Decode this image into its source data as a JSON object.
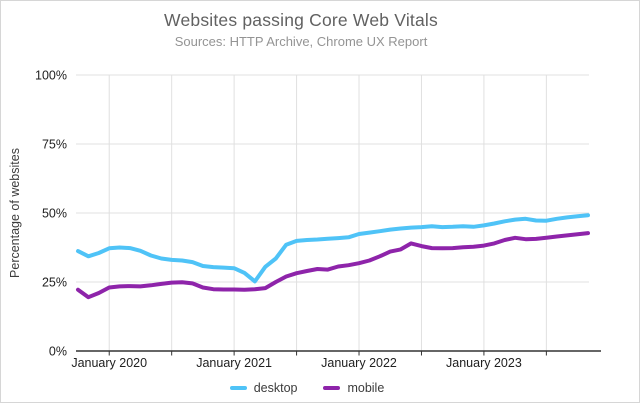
{
  "page": {
    "background": "#ffffff",
    "border_color": "#d6d6d6"
  },
  "chart_data": {
    "type": "line",
    "title": "Websites passing Core Web Vitals",
    "subtitle": "Sources: HTTP Archive, Chrome UX Report",
    "xlabel": "",
    "ylabel": "Percentage of websites",
    "ylim": [
      0,
      100
    ],
    "grid": true,
    "legend_position": "bottom",
    "y_ticks": [
      {
        "value": 0,
        "label": "0%"
      },
      {
        "value": 25,
        "label": "25%"
      },
      {
        "value": 50,
        "label": "50%"
      },
      {
        "value": 75,
        "label": "75%"
      },
      {
        "value": 100,
        "label": "100%"
      }
    ],
    "x": [
      "2019-10",
      "2019-11",
      "2019-12",
      "2020-01",
      "2020-02",
      "2020-03",
      "2020-04",
      "2020-05",
      "2020-06",
      "2020-07",
      "2020-08",
      "2020-09",
      "2020-10",
      "2020-11",
      "2020-12",
      "2021-01",
      "2021-02",
      "2021-03",
      "2021-04",
      "2021-05",
      "2021-06",
      "2021-07",
      "2021-08",
      "2021-09",
      "2021-10",
      "2021-11",
      "2021-12",
      "2022-01",
      "2022-02",
      "2022-03",
      "2022-04",
      "2022-05",
      "2022-06",
      "2022-07",
      "2022-08",
      "2022-09",
      "2022-10",
      "2022-11",
      "2022-12",
      "2023-01",
      "2023-02",
      "2023-03",
      "2023-04",
      "2023-05",
      "2023-06",
      "2023-07",
      "2023-08",
      "2023-09",
      "2023-10",
      "2023-11"
    ],
    "x_gridline_indices": [
      3,
      9,
      15,
      21,
      27,
      33,
      39,
      45
    ],
    "x_label_ticks": [
      {
        "index": 3,
        "label": "January 2020"
      },
      {
        "index": 15,
        "label": "January 2021"
      },
      {
        "index": 27,
        "label": "January 2022"
      },
      {
        "index": 39,
        "label": "January 2023"
      }
    ],
    "series": [
      {
        "name": "desktop",
        "color": "#4FC3F7",
        "values": [
          36.2,
          34.3,
          35.5,
          37.2,
          37.5,
          37.3,
          36.3,
          34.6,
          33.5,
          33.0,
          32.8,
          32.2,
          30.8,
          30.4,
          30.2,
          30.0,
          28.3,
          25.2,
          30.5,
          33.5,
          38.5,
          39.9,
          40.2,
          40.4,
          40.7,
          40.9,
          41.2,
          42.4,
          42.9,
          43.4,
          44.0,
          44.4,
          44.7,
          44.9,
          45.2,
          44.9,
          45.0,
          45.2,
          45.0,
          45.5,
          46.2,
          47.0,
          47.6,
          47.9,
          47.3,
          47.2,
          47.9,
          48.4,
          48.8,
          49.2
        ]
      },
      {
        "name": "mobile",
        "color": "#8E24AA",
        "values": [
          22.2,
          19.5,
          21.0,
          23.0,
          23.4,
          23.5,
          23.4,
          23.8,
          24.3,
          24.8,
          24.9,
          24.5,
          23.0,
          22.4,
          22.3,
          22.3,
          22.2,
          22.4,
          22.8,
          25.0,
          27.0,
          28.2,
          29.0,
          29.7,
          29.5,
          30.6,
          31.1,
          31.8,
          32.8,
          34.3,
          36.0,
          36.8,
          39.0,
          38.0,
          37.3,
          37.2,
          37.3,
          37.6,
          37.8,
          38.2,
          39.0,
          40.2,
          41.0,
          40.5,
          40.6,
          41.0,
          41.5,
          41.9,
          42.3,
          42.7
        ]
      }
    ],
    "colors": {
      "grid": "#e0e0e0",
      "axis": "#333333",
      "tick_text": "#212121",
      "title": "#616161",
      "subtitle": "#949494"
    }
  }
}
